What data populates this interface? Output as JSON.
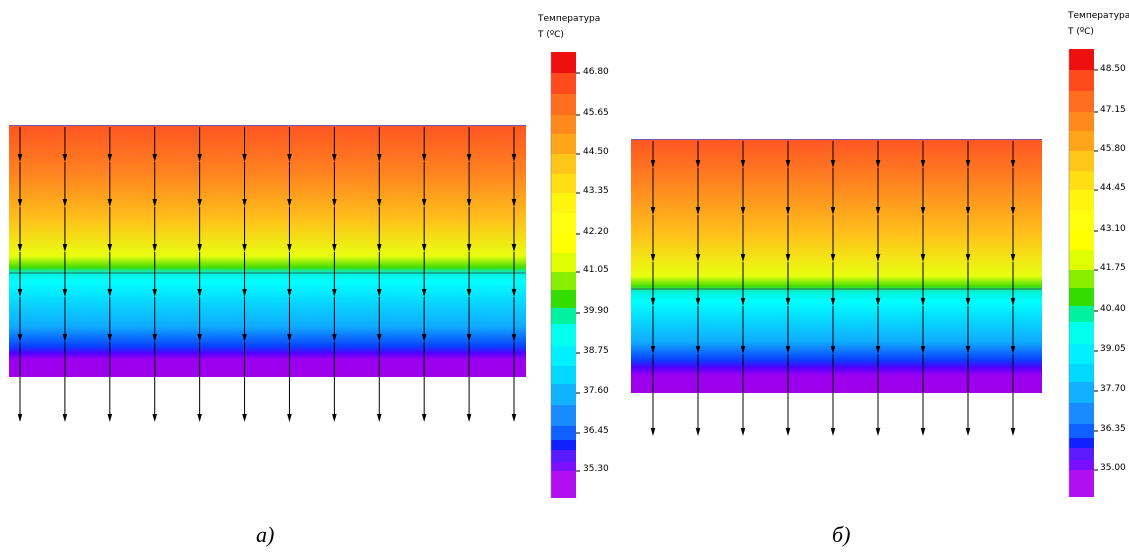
{
  "panels": [
    {
      "id": "a",
      "label": "а)",
      "legend": {
        "title_line1": "Температура",
        "title_line2": "T (ºC)",
        "ticks": [
          "46.80",
          "45.65",
          "44.50",
          "43.35",
          "42.20",
          "41.05",
          "39.90",
          "38.75",
          "37.60",
          "36.45",
          "35.30"
        ]
      },
      "flux_arrows_columns": 12
    },
    {
      "id": "b",
      "label": "б)",
      "legend": {
        "title_line1": "Температура",
        "title_line2": "T (ºC)",
        "ticks": [
          "48.50",
          "47.15",
          "45.80",
          "44.45",
          "43.10",
          "41.75",
          "40.40",
          "39.05",
          "37.70",
          "36.35",
          "35.00"
        ]
      },
      "flux_arrows_columns": 9
    }
  ],
  "colors": {
    "scale_top": "#ff0000",
    "scale_orange": "#ff8c1a",
    "scale_yellow": "#ffff00",
    "scale_green": "#33cc00",
    "scale_cyan": "#00ffff",
    "scale_blue": "#0000ff",
    "scale_violet": "#aa00ff",
    "arrow": "#000000"
  }
}
